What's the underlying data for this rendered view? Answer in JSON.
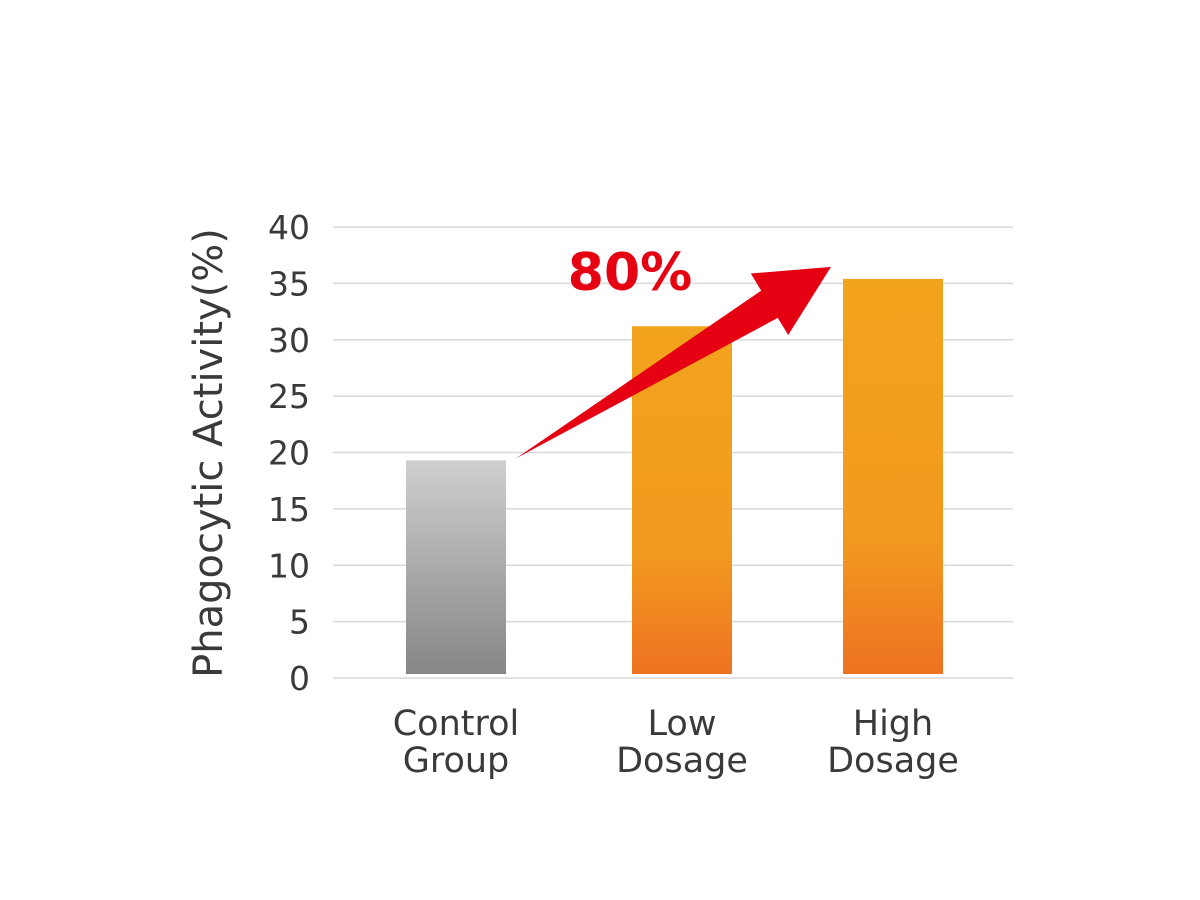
{
  "chart_data": {
    "type": "bar",
    "categories": [
      [
        "Control",
        "Group"
      ],
      [
        "Low",
        "Dosage"
      ],
      [
        "High",
        "Dosage"
      ]
    ],
    "values": [
      19.3,
      31.2,
      35.4
    ],
    "ylabel": "Phagocytic Activity(%)",
    "xlabel": "",
    "title": "",
    "ylim": [
      0,
      40
    ],
    "yticks": [
      0,
      5,
      10,
      15,
      20,
      25,
      30,
      35,
      40
    ],
    "grid": true,
    "annotation": {
      "text": "80%",
      "from_category": 0,
      "to_category": 2
    },
    "colors": {
      "control_top": "#cfcfcf",
      "control_bottom": "#868686",
      "dosage_top": "#f2a31d",
      "dosage_mid": "#f29a1f",
      "dosage_bottom": "#ee7222",
      "arrow": "#e50012",
      "grid": "#d9d9d9",
      "text": "#3a3a3a"
    }
  }
}
